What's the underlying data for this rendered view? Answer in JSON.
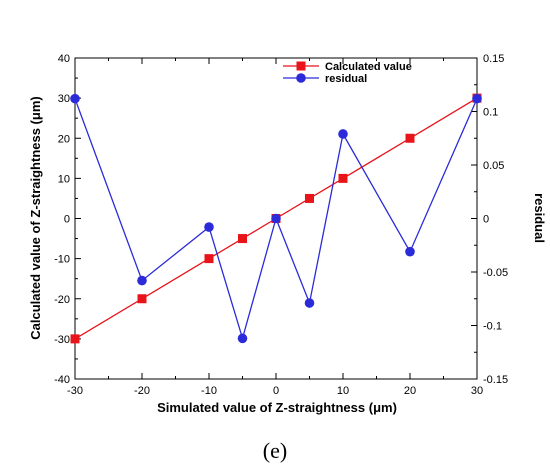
{
  "caption": "(e)",
  "chart_data": {
    "type": "line",
    "xlabel": "Simulated value of Z-straightness (μm)",
    "ylabel": "Calculated value of Z-straightness (μm)",
    "y2label": "residual",
    "xlim": [
      -30,
      30
    ],
    "ylim": [
      -40,
      40
    ],
    "y2lim": [
      -0.15,
      0.15
    ],
    "xticks": [
      "-30",
      "-20",
      "-10",
      "0",
      "10",
      "20",
      "30"
    ],
    "yticks": [
      "-40",
      "-30",
      "-20",
      "-10",
      "0",
      "10",
      "20",
      "30",
      "40"
    ],
    "y2ticks": [
      "-0.15",
      "-0.1",
      "-0.05",
      "0",
      "0.05",
      "0.1",
      "0.15"
    ],
    "legend_position": "top-right",
    "grid": false,
    "series": [
      {
        "name": "Calculated value",
        "axis": "left",
        "color": "#e8141a",
        "marker": "square",
        "x": [
          -30,
          -20,
          -10,
          -5,
          0,
          5,
          10,
          20,
          30
        ],
        "y": [
          -30,
          -20,
          -10,
          -5,
          0,
          5,
          10,
          20,
          30
        ]
      },
      {
        "name": "residual",
        "axis": "right",
        "color": "#2b2bd9",
        "marker": "circle",
        "x": [
          -30,
          -20,
          -10,
          -5,
          0,
          5,
          10,
          20,
          30
        ],
        "y": [
          0.112,
          -0.058,
          -0.008,
          -0.112,
          0.0,
          -0.079,
          0.079,
          -0.031,
          0.112
        ]
      }
    ]
  }
}
